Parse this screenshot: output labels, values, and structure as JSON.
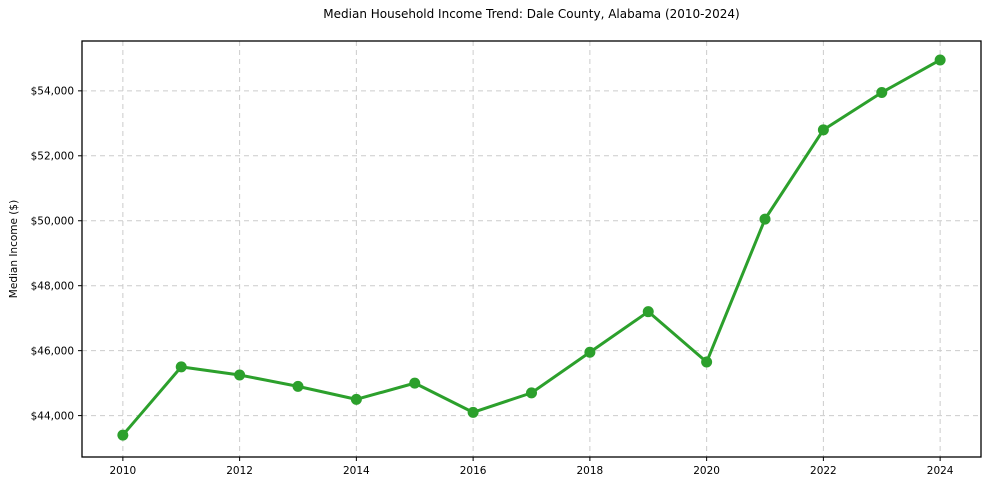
{
  "figure": {
    "background": "#ffffff"
  },
  "chart_data": {
    "type": "line",
    "title": "Median Household Income Trend: Dale County, Alabama (2010-2024)",
    "xlabel": "",
    "ylabel": "Median Income ($)",
    "x": [
      2010,
      2011,
      2012,
      2013,
      2014,
      2015,
      2016,
      2017,
      2018,
      2019,
      2020,
      2021,
      2022,
      2023,
      2024
    ],
    "values": [
      43400,
      45500,
      45250,
      44900,
      44500,
      45000,
      44100,
      44700,
      45950,
      47200,
      45650,
      50050,
      52800,
      53950,
      54950
    ],
    "series_name": "Median Household Income",
    "xlim": [
      2009.3,
      2024.7
    ],
    "ylim": [
      42725,
      55535
    ],
    "x_ticks": [
      2010,
      2012,
      2014,
      2016,
      2018,
      2020,
      2022,
      2024
    ],
    "x_tick_labels": [
      "2010",
      "2012",
      "2014",
      "2016",
      "2018",
      "2020",
      "2022",
      "2024"
    ],
    "y_ticks": [
      44000,
      46000,
      48000,
      50000,
      52000,
      54000
    ],
    "y_tick_labels": [
      "$44,000",
      "$46,000",
      "$48,000",
      "$50,000",
      "$52,000",
      "$54,000"
    ],
    "grid": true,
    "grid_style": "dashed",
    "legend": false,
    "line_color": "#2ca02c",
    "marker": "circle",
    "grid_color": "#cccccc",
    "spine_color": "#000000",
    "text_color": "#000000"
  }
}
